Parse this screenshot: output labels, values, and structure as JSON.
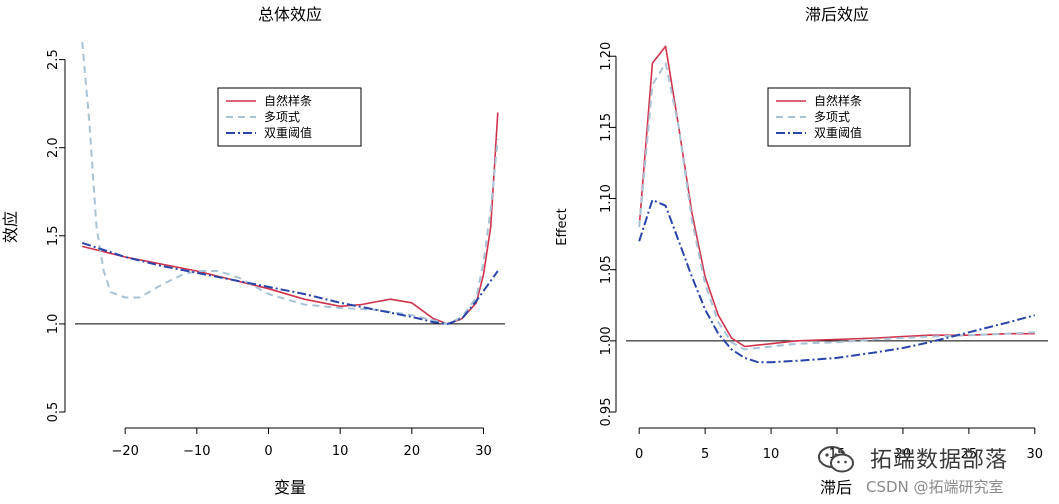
{
  "colors": {
    "spline": "#d0344d",
    "poly": "#a9c3d6",
    "threshold": "#2a45a8",
    "axis": "#000000",
    "refline": "#000000"
  },
  "watermark": {
    "main": "拓端数据部落",
    "sub": "CSDN @拓端研究室"
  },
  "chart_data": [
    {
      "type": "line",
      "title": "总体效应",
      "xlabel": "变量",
      "ylabel": "效应",
      "xlim": [
        -27,
        33
      ],
      "ylim": [
        0.5,
        2.6
      ],
      "xticks": [
        -20,
        -10,
        0,
        10,
        20,
        30
      ],
      "xtick_labels": [
        "−20",
        "−10",
        "0",
        "10",
        "20",
        "30"
      ],
      "yticks": [
        0.5,
        1.0,
        1.5,
        2.0,
        2.5
      ],
      "ytick_labels": [
        "0.5",
        "1.0",
        "1.5",
        "2.0",
        "2.5"
      ],
      "refline": 1.0,
      "legend_position": "top-center",
      "series": [
        {
          "name": "自然样条",
          "style": "solid",
          "color_key": "spline",
          "x": [
            -26,
            -20,
            -15,
            -10,
            -5,
            0,
            5,
            10,
            13,
            17,
            20,
            23,
            25,
            27,
            29,
            30,
            31,
            32
          ],
          "y": [
            1.44,
            1.38,
            1.34,
            1.3,
            1.25,
            1.2,
            1.14,
            1.1,
            1.11,
            1.14,
            1.12,
            1.03,
            1.0,
            1.03,
            1.12,
            1.28,
            1.55,
            2.2
          ]
        },
        {
          "name": "多项式",
          "style": "dashed",
          "color_key": "poly",
          "x": [
            -26,
            -25,
            -24,
            -23,
            -22,
            -20,
            -18,
            -15,
            -12,
            -10,
            -7,
            -4,
            0,
            5,
            10,
            15,
            20,
            25,
            27,
            29,
            30,
            31,
            32
          ],
          "y": [
            2.6,
            2.15,
            1.55,
            1.3,
            1.18,
            1.15,
            1.15,
            1.22,
            1.28,
            1.3,
            1.3,
            1.26,
            1.17,
            1.11,
            1.09,
            1.08,
            1.05,
            1.0,
            1.04,
            1.15,
            1.35,
            1.65,
            2.05
          ]
        },
        {
          "name": "双重阈值",
          "style": "dotdash",
          "color_key": "threshold",
          "x": [
            -26,
            -20,
            -15,
            -10,
            -5,
            0,
            5,
            10,
            15,
            20,
            23,
            25,
            27,
            29,
            32
          ],
          "y": [
            1.46,
            1.38,
            1.33,
            1.29,
            1.25,
            1.21,
            1.17,
            1.12,
            1.08,
            1.04,
            1.01,
            1.0,
            1.03,
            1.13,
            1.3
          ]
        }
      ]
    },
    {
      "type": "line",
      "title": "滞后效应",
      "xlabel": "滞后",
      "ylabel": "Effect",
      "xlim": [
        -1,
        31
      ],
      "ylim": [
        0.95,
        1.21
      ],
      "xticks": [
        0,
        5,
        10,
        15,
        20,
        25,
        30
      ],
      "xtick_labels": [
        "0",
        "5",
        "10",
        "15",
        "20",
        "25",
        "30"
      ],
      "yticks": [
        0.95,
        1.0,
        1.05,
        1.1,
        1.15,
        1.2
      ],
      "ytick_labels": [
        "0.95",
        "1.00",
        "1.05",
        "1.10",
        "1.15",
        "1.20"
      ],
      "refline": 1.0,
      "legend_position": "top-center",
      "series": [
        {
          "name": "自然样条",
          "style": "solid",
          "color_key": "spline",
          "x": [
            0,
            1,
            2,
            3,
            4,
            5,
            6,
            7,
            8,
            9,
            10,
            12,
            15,
            18,
            20,
            22,
            25,
            28,
            30
          ],
          "y": [
            1.08,
            1.195,
            1.207,
            1.15,
            1.09,
            1.045,
            1.018,
            1.002,
            0.996,
            0.997,
            0.998,
            1.0,
            1.001,
            1.002,
            1.003,
            1.004,
            1.004,
            1.005,
            1.005
          ]
        },
        {
          "name": "多项式",
          "style": "dashed",
          "color_key": "poly",
          "x": [
            0,
            1,
            2,
            3,
            4,
            5,
            6,
            7,
            8,
            9,
            10,
            12,
            15,
            18,
            20,
            22,
            25,
            28,
            30
          ],
          "y": [
            1.08,
            1.18,
            1.195,
            1.15,
            1.085,
            1.04,
            1.013,
            0.999,
            0.994,
            0.995,
            0.996,
            0.998,
            0.999,
            1.001,
            1.002,
            1.003,
            1.004,
            1.005,
            1.006
          ]
        },
        {
          "name": "双重阈值",
          "style": "dotdash",
          "color_key": "threshold",
          "x": [
            0,
            1,
            2,
            3,
            4,
            5,
            6,
            7,
            8,
            9,
            10,
            12,
            15,
            18,
            20,
            22,
            25,
            28,
            30
          ],
          "y": [
            1.07,
            1.099,
            1.095,
            1.07,
            1.045,
            1.022,
            1.005,
            0.994,
            0.988,
            0.985,
            0.985,
            0.986,
            0.988,
            0.992,
            0.995,
            0.999,
            1.006,
            1.013,
            1.018
          ]
        }
      ]
    }
  ]
}
